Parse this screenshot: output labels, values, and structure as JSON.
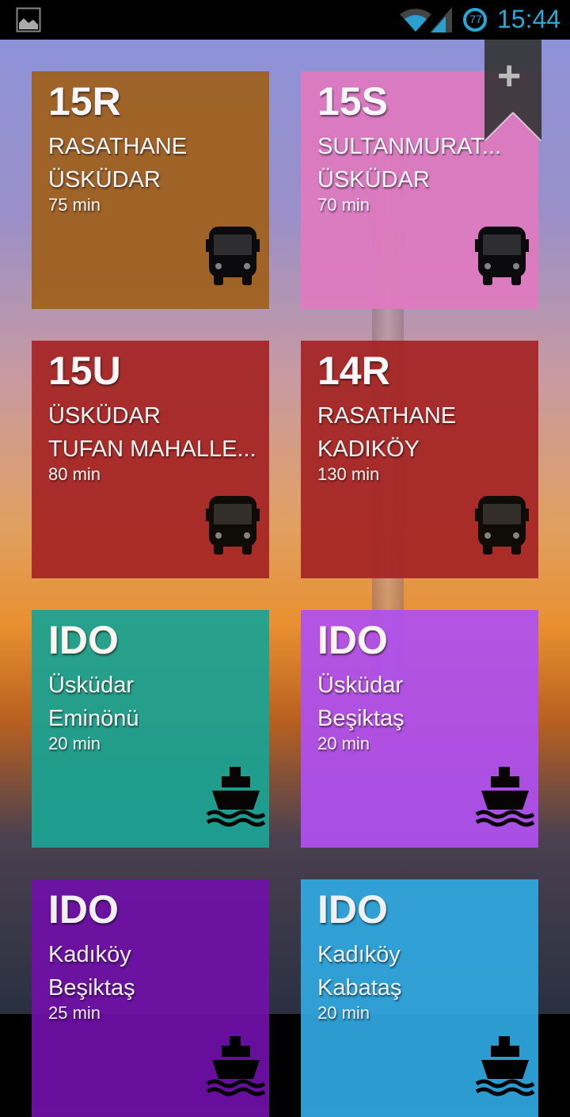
{
  "status_bar": {
    "time": "15:44",
    "battery": "77",
    "icons": [
      "image-notification-icon",
      "wifi-icon",
      "signal-icon",
      "battery-icon"
    ]
  },
  "add_button": {
    "icon": "plus-icon",
    "label": "+"
  },
  "tiles": [
    {
      "code": "15R",
      "line1": "RASATHANE",
      "line2": "ÜSKÜDAR",
      "duration": "75 min",
      "type": "bus",
      "color": "#a0601c"
    },
    {
      "code": "15S",
      "line1": "SULTANMURAT...",
      "line2": "ÜSKÜDAR",
      "duration": "70 min",
      "type": "bus",
      "color": "#e07ac0"
    },
    {
      "code": "15U",
      "line1": "ÜSKÜDAR",
      "line2": "TUFAN MAHALLE...",
      "duration": "80 min",
      "type": "bus",
      "color": "#a52424"
    },
    {
      "code": "14R",
      "line1": "RASATHANE",
      "line2": "KADIKÖY",
      "duration": "130 min",
      "type": "bus",
      "color": "#a52424"
    },
    {
      "code": "IDO",
      "line1": "Üsküdar",
      "line2": "Eminönü",
      "duration": "20 min",
      "type": "ferry",
      "color": "#1aa394"
    },
    {
      "code": "IDO",
      "line1": "Üsküdar",
      "line2": "Beşiktaş",
      "duration": "20 min",
      "type": "ferry",
      "color": "#b050f0"
    },
    {
      "code": "IDO",
      "line1": "Kadıköy",
      "line2": "Beşiktaş",
      "duration": "25 min",
      "type": "ferry",
      "color": "#7010a8"
    },
    {
      "code": "IDO",
      "line1": "Kadıköy",
      "line2": "Kabataş",
      "duration": "20 min",
      "type": "ferry",
      "color": "#30a8e0"
    }
  ]
}
